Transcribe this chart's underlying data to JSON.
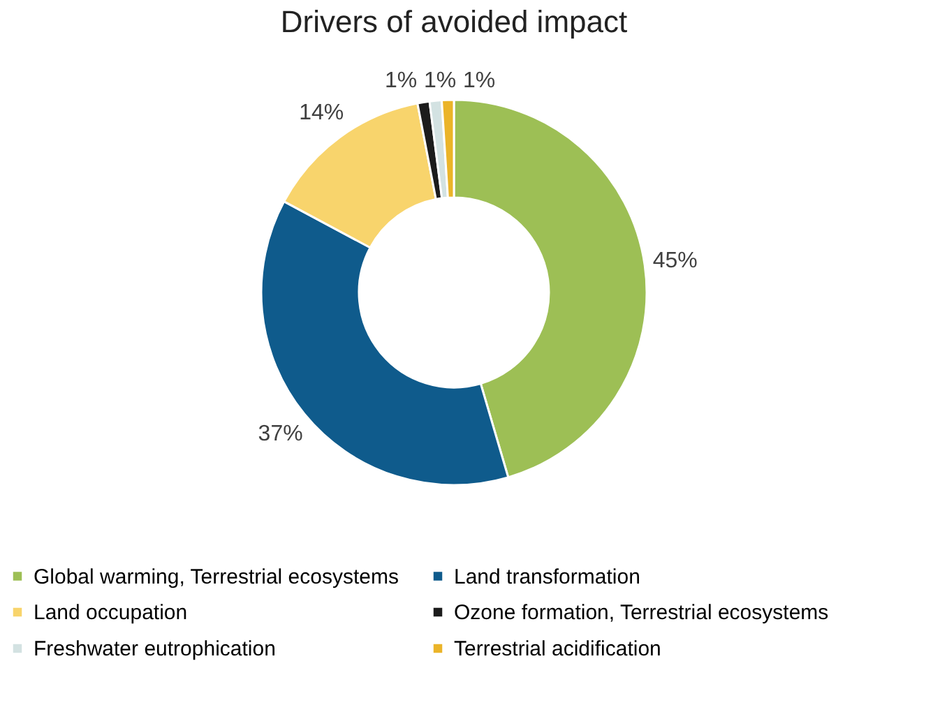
{
  "chart_data": {
    "type": "donut",
    "title": "Drivers of avoided impact",
    "categories": [
      "Global warming, Terrestrial ecosystems",
      "Land transformation",
      "Land occupation",
      "Ozone formation, Terrestrial ecosystems",
      "Freshwater eutrophication",
      "Terrestrial acidification"
    ],
    "values": [
      45,
      37,
      14,
      1,
      1,
      1
    ],
    "colors": [
      "#9dbf55",
      "#0f5b8c",
      "#f8d46c",
      "#1c1c1c",
      "#d3e2e2",
      "#ebb429"
    ],
    "value_labels": [
      "45%",
      "37%",
      "14%",
      "1%",
      "1%",
      "1%"
    ],
    "legend": "bottom"
  }
}
